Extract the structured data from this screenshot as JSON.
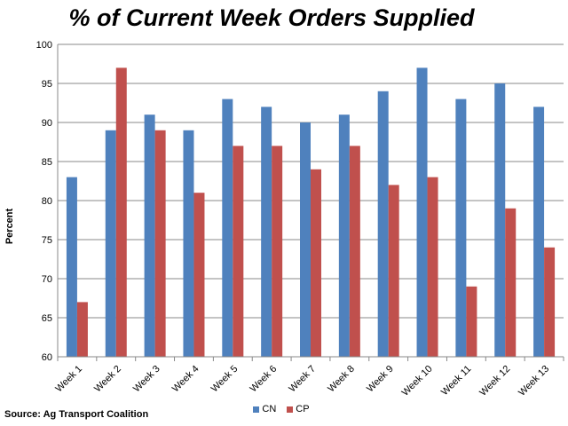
{
  "chart_data": {
    "type": "bar",
    "title": "% of Current Week Orders Supplied",
    "ylabel": "Percent",
    "xlabel": "",
    "ylim": [
      60,
      100
    ],
    "yticks": [
      60,
      65,
      70,
      75,
      80,
      85,
      90,
      95,
      100
    ],
    "categories": [
      "Week 1",
      "Week 2",
      "Week 3",
      "Week 4",
      "Week 5",
      "Week 6",
      "Week 7",
      "Week 8",
      "Week 9",
      "Week 10",
      "Week 11",
      "Week 12",
      "Week 13"
    ],
    "series": [
      {
        "name": "CN",
        "color": "#4f81bd",
        "values": [
          83,
          89,
          91,
          89,
          93,
          92,
          90,
          91,
          94,
          97,
          93,
          95,
          92
        ]
      },
      {
        "name": "CP",
        "color": "#c0504d",
        "values": [
          67,
          97,
          89,
          81,
          87,
          87,
          84,
          87,
          82,
          83,
          69,
          79,
          74
        ]
      }
    ],
    "grid": true,
    "legend_position": "bottom",
    "source": "Source: Ag Transport Coalition"
  }
}
